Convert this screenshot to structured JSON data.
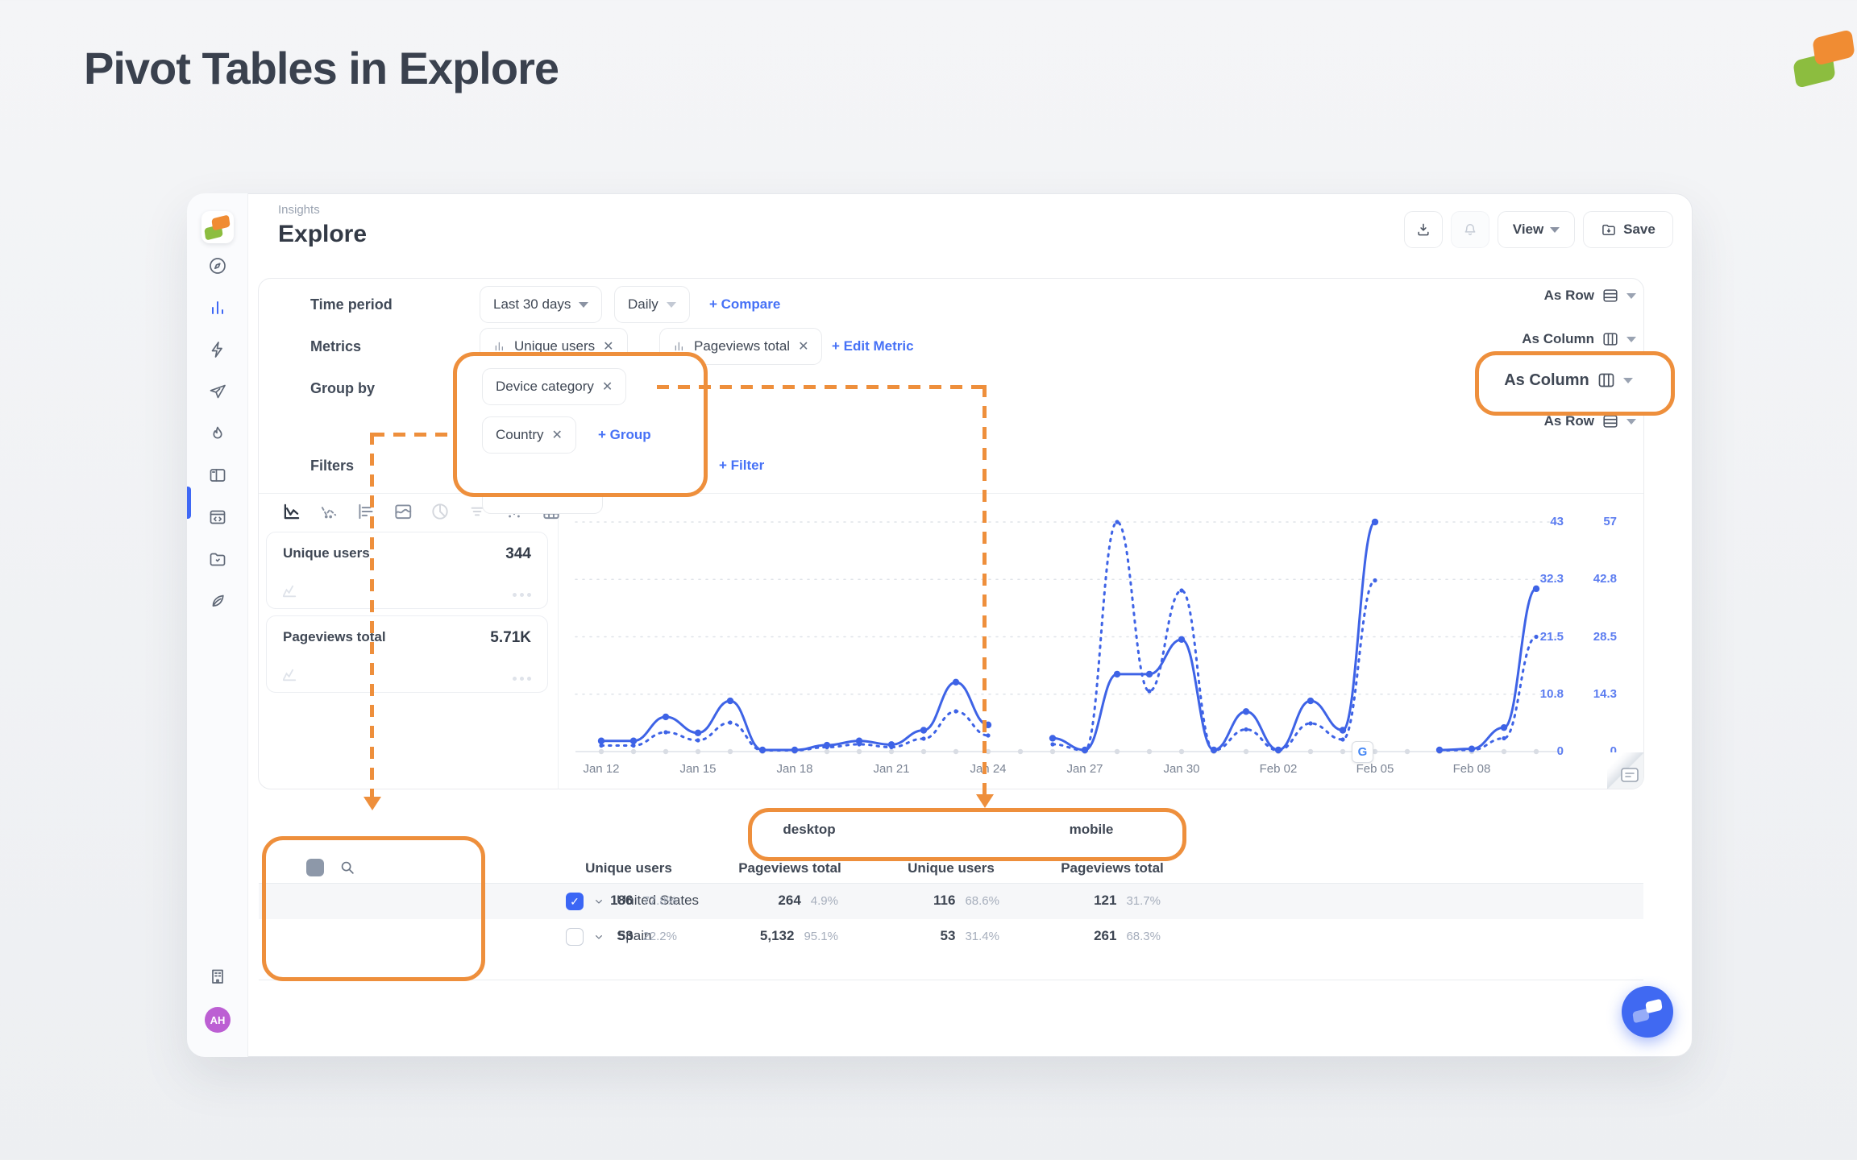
{
  "page": {
    "title": "Pivot Tables in Explore"
  },
  "header": {
    "breadcrumb": "Insights",
    "title": "Explore",
    "view_label": "View",
    "save_label": "Save"
  },
  "sidebar": {
    "avatar_initials": "AH"
  },
  "controls": {
    "time_period": {
      "label": "Time period",
      "range": "Last 30 days",
      "granularity": "Daily",
      "action": "+ Compare",
      "pivot": "As Row"
    },
    "metrics": {
      "label": "Metrics",
      "chips": [
        "Unique users",
        "Pageviews total"
      ],
      "action": "+ Edit Metric",
      "pivot": "As Column"
    },
    "group_by": {
      "label": "Group by",
      "chips": [
        "Device category",
        "Country"
      ],
      "action": "+ Group",
      "pivot": "As Column"
    },
    "filters": {
      "label": "Filters",
      "action": "+ Filter",
      "pivot": "As Row"
    }
  },
  "metric_cards": [
    {
      "label": "Unique users",
      "value": "344"
    },
    {
      "label": "Pageviews total",
      "value": "5.71K"
    }
  ],
  "chart_data": {
    "type": "line",
    "title": "",
    "x_tick_labels": [
      "Jan 12",
      "Jan 15",
      "Jan 18",
      "Jan 21",
      "Jan 24",
      "Jan 27",
      "Jan 30",
      "Feb 02",
      "Feb 05",
      "Feb 08"
    ],
    "x_tick_step": 3,
    "num_points": 30,
    "grid": "dotted-horizontal",
    "legend_position": "none",
    "series": [
      {
        "name": "desktop",
        "style": "solid",
        "color": "#3e63e6",
        "axis": "left",
        "values": [
          2,
          2,
          6.5,
          3.5,
          9.5,
          0.3,
          0.3,
          1.2,
          2,
          1.3,
          4,
          13,
          5,
          null,
          2.5,
          0.3,
          14.5,
          14.5,
          21,
          0.3,
          7.5,
          0.3,
          9.5,
          4,
          43,
          null,
          0.3,
          0.5,
          4.5,
          30.5
        ]
      },
      {
        "name": "mobile",
        "style": "dotted",
        "color": "#3e63e6",
        "axis": "right",
        "values": [
          1.5,
          1.5,
          4.8,
          2.8,
          7.2,
          0.3,
          0.3,
          1.1,
          1.8,
          1.1,
          3.2,
          10,
          4,
          null,
          1.8,
          0.3,
          57,
          15,
          40,
          0.3,
          5.5,
          0.3,
          7,
          3,
          42.5,
          null,
          0.3,
          0.4,
          3.3,
          28.5
        ]
      }
    ],
    "y_axis_left": {
      "ticks": [
        "43",
        "32.3",
        "21.5",
        "10.8",
        "0"
      ],
      "max": 43
    },
    "y_axis_right": {
      "ticks": [
        "57",
        "42.8",
        "28.5",
        "14.3",
        "0"
      ],
      "max": 57
    },
    "annotation": {
      "label": "G",
      "x_index": 23.6
    }
  },
  "table": {
    "groups": [
      {
        "label": "desktop"
      },
      {
        "label": "mobile"
      }
    ],
    "columns": [
      "Unique users",
      "Pageviews total",
      "Unique users",
      "Pageviews total"
    ],
    "rows": [
      {
        "name": "United States",
        "checked": true,
        "cells": [
          {
            "value": "186",
            "pct": "77.8%"
          },
          {
            "value": "264",
            "pct": "4.9%"
          },
          {
            "value": "116",
            "pct": "68.6%"
          },
          {
            "value": "121",
            "pct": "31.7%"
          }
        ]
      },
      {
        "name": "Spain",
        "checked": false,
        "cells": [
          {
            "value": "53",
            "pct": "22.2%"
          },
          {
            "value": "5,132",
            "pct": "95.1%"
          },
          {
            "value": "53",
            "pct": "31.4%"
          },
          {
            "value": "261",
            "pct": "68.3%"
          }
        ]
      }
    ]
  }
}
